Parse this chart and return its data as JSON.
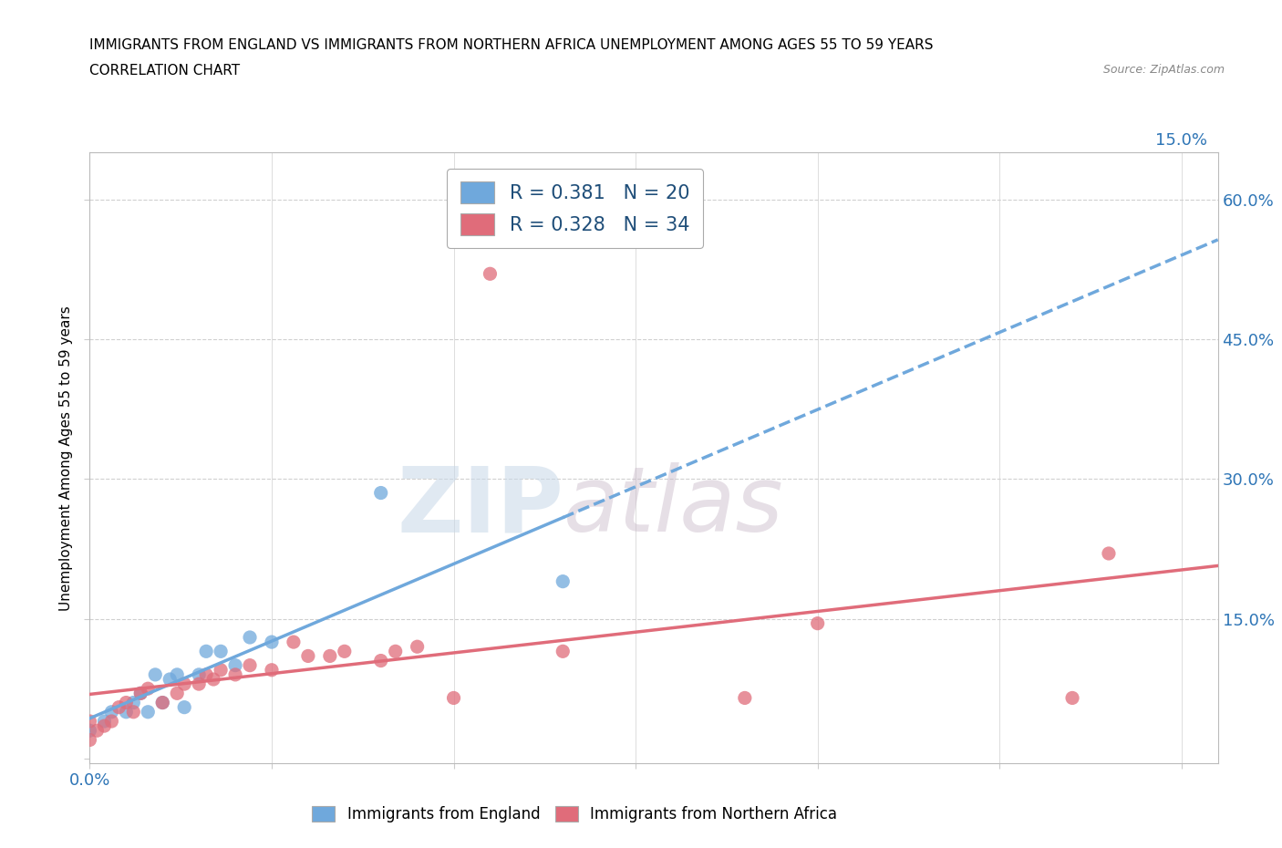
{
  "title_line1": "IMMIGRANTS FROM ENGLAND VS IMMIGRANTS FROM NORTHERN AFRICA UNEMPLOYMENT AMONG AGES 55 TO 59 YEARS",
  "title_line2": "CORRELATION CHART",
  "source_text": "Source: ZipAtlas.com",
  "ylabel": "Unemployment Among Ages 55 to 59 years",
  "xlim": [
    0.0,
    0.155
  ],
  "ylim": [
    -0.005,
    0.65
  ],
  "xticks": [
    0.0,
    0.025,
    0.05,
    0.075,
    0.1,
    0.125,
    0.15
  ],
  "yticks": [
    0.0,
    0.15,
    0.3,
    0.45,
    0.6
  ],
  "xtick_left_labels": [
    "0.0%",
    "",
    "",
    "",
    "",
    "",
    ""
  ],
  "xtick_right_labels": [
    "",
    "",
    "",
    "",
    "",
    "",
    "15.0%"
  ],
  "ytick_right_labels": [
    "",
    "15.0%",
    "30.0%",
    "45.0%",
    "60.0%"
  ],
  "color_england": "#6fa8dc",
  "color_nafrica": "#e06c7a",
  "england_R": 0.381,
  "england_N": 20,
  "nafrica_R": 0.328,
  "nafrica_N": 34,
  "england_x": [
    0.0,
    0.002,
    0.003,
    0.005,
    0.006,
    0.007,
    0.008,
    0.009,
    0.01,
    0.011,
    0.012,
    0.013,
    0.015,
    0.016,
    0.018,
    0.02,
    0.022,
    0.025,
    0.04,
    0.065
  ],
  "england_y": [
    0.03,
    0.04,
    0.05,
    0.05,
    0.06,
    0.07,
    0.05,
    0.09,
    0.06,
    0.085,
    0.09,
    0.055,
    0.09,
    0.115,
    0.115,
    0.1,
    0.13,
    0.125,
    0.285,
    0.19
  ],
  "nafrica_x": [
    0.0,
    0.0,
    0.001,
    0.002,
    0.003,
    0.004,
    0.005,
    0.006,
    0.007,
    0.008,
    0.01,
    0.012,
    0.013,
    0.015,
    0.016,
    0.017,
    0.018,
    0.02,
    0.022,
    0.025,
    0.028,
    0.03,
    0.033,
    0.035,
    0.04,
    0.042,
    0.045,
    0.05,
    0.055,
    0.065,
    0.09,
    0.1,
    0.135,
    0.14
  ],
  "nafrica_y": [
    0.02,
    0.04,
    0.03,
    0.035,
    0.04,
    0.055,
    0.06,
    0.05,
    0.07,
    0.075,
    0.06,
    0.07,
    0.08,
    0.08,
    0.09,
    0.085,
    0.095,
    0.09,
    0.1,
    0.095,
    0.125,
    0.11,
    0.11,
    0.115,
    0.105,
    0.115,
    0.12,
    0.065,
    0.52,
    0.115,
    0.065,
    0.145,
    0.065,
    0.22
  ],
  "watermark_zip": "ZIP",
  "watermark_atlas": "atlas",
  "bg_color": "#ffffff",
  "grid_color": "#d0d0d0",
  "legend_text_color": "#1f4e79",
  "tick_color": "#2e75b6"
}
